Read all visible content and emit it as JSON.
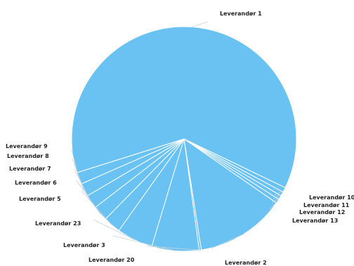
{
  "chart_data": {
    "type": "pie",
    "title": "",
    "legend": "none",
    "colors": {
      "slice_fill": "#69c2f1",
      "slice_border": "#ffffff",
      "label_text": "#222222",
      "leader_line": "#c9d4dd"
    },
    "slices": [
      {
        "label": "Leverandør 1",
        "value": 62.0
      },
      {
        "label": "Leverandør 10",
        "value": 0.7
      },
      {
        "label": "Leverandør 11",
        "value": 0.6
      },
      {
        "label": "Leverandør 12",
        "value": 0.6
      },
      {
        "label": "Leverandør 13",
        "value": 0.6
      },
      {
        "label": "Leverandør 2",
        "value": 12.9
      },
      {
        "label": "Leverandør 20",
        "value": 0.3
      },
      {
        "label": "Leverandør 3",
        "value": 6.8
      },
      {
        "label": "Leverandør 23",
        "value": 5.2
      },
      {
        "label": "Leverandør 5",
        "value": 2.5
      },
      {
        "label": "Leverandør 6",
        "value": 2.2
      },
      {
        "label": "Leverandør 7",
        "value": 2.0
      },
      {
        "label": "Leverandør 8",
        "value": 1.9
      },
      {
        "label": "Leverandør 9",
        "value": 1.7
      }
    ]
  }
}
